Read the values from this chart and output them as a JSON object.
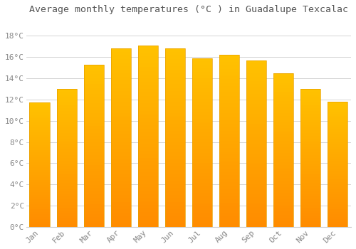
{
  "title": "Average monthly temperatures (°C ) in Guadalupe Texcalac",
  "months": [
    "Jan",
    "Feb",
    "Mar",
    "Apr",
    "May",
    "Jun",
    "Jul",
    "Aug",
    "Sep",
    "Oct",
    "Nov",
    "Dec"
  ],
  "values": [
    11.7,
    13.0,
    15.3,
    16.8,
    17.1,
    16.8,
    15.9,
    16.2,
    15.7,
    14.5,
    13.0,
    11.8
  ],
  "bar_color_top": "#FFC200",
  "bar_color_bottom": "#FF8C00",
  "bar_edge_color": "#E8A000",
  "background_color": "#ffffff",
  "grid_color": "#cccccc",
  "title_fontsize": 9.5,
  "tick_fontsize": 8,
  "ylabel_ticks": [
    0,
    2,
    4,
    6,
    8,
    10,
    12,
    14,
    16,
    18
  ],
  "ylim": [
    0,
    19.5
  ],
  "figsize": [
    5.0,
    3.5
  ],
  "dpi": 100,
  "tick_color": "#888888",
  "title_color": "#555555",
  "bar_width": 0.75
}
